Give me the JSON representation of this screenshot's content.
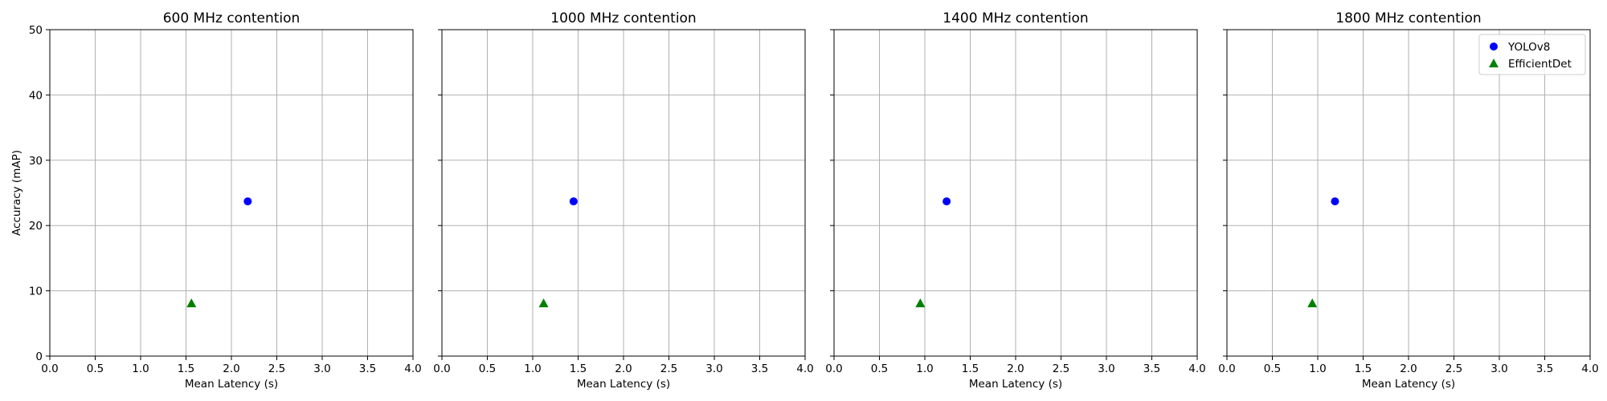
{
  "chart_data": [
    {
      "type": "scatter",
      "title": "600 MHz contention",
      "xlabel": "Mean Latency (s)",
      "ylabel": "Accuracy (mAP)",
      "xlim": [
        0,
        4
      ],
      "ylim": [
        0,
        50
      ],
      "x_ticks": [
        "0.0",
        "0.5",
        "1.0",
        "1.5",
        "2.0",
        "2.5",
        "3.0",
        "3.5",
        "4.0"
      ],
      "y_ticks": [
        "0",
        "10",
        "20",
        "30",
        "40",
        "50"
      ],
      "grid": true,
      "legend": false,
      "series": [
        {
          "name": "YOLOv8",
          "marker": "circle",
          "color": "#0000ff",
          "points": [
            {
              "x": 2.18,
              "y": 23.7
            }
          ]
        },
        {
          "name": "EfficientDet",
          "marker": "triangle",
          "color": "#008000",
          "points": [
            {
              "x": 1.56,
              "y": 8.1
            }
          ]
        }
      ]
    },
    {
      "type": "scatter",
      "title": "1000 MHz contention",
      "xlabel": "Mean Latency (s)",
      "ylabel": "",
      "xlim": [
        0,
        4
      ],
      "ylim": [
        0,
        50
      ],
      "x_ticks": [
        "0.0",
        "0.5",
        "1.0",
        "1.5",
        "2.0",
        "2.5",
        "3.0",
        "3.5",
        "4.0"
      ],
      "y_ticks": [],
      "grid": true,
      "legend": false,
      "series": [
        {
          "name": "YOLOv8",
          "marker": "circle",
          "color": "#0000ff",
          "points": [
            {
              "x": 1.45,
              "y": 23.7
            }
          ]
        },
        {
          "name": "EfficientDet",
          "marker": "triangle",
          "color": "#008000",
          "points": [
            {
              "x": 1.12,
              "y": 8.1
            }
          ]
        }
      ]
    },
    {
      "type": "scatter",
      "title": "1400 MHz contention",
      "xlabel": "Mean Latency (s)",
      "ylabel": "",
      "xlim": [
        0,
        4
      ],
      "ylim": [
        0,
        50
      ],
      "x_ticks": [
        "0.0",
        "0.5",
        "1.0",
        "1.5",
        "2.0",
        "2.5",
        "3.0",
        "3.5",
        "4.0"
      ],
      "y_ticks": [],
      "grid": true,
      "legend": false,
      "series": [
        {
          "name": "YOLOv8",
          "marker": "circle",
          "color": "#0000ff",
          "points": [
            {
              "x": 1.24,
              "y": 23.7
            }
          ]
        },
        {
          "name": "EfficientDet",
          "marker": "triangle",
          "color": "#008000",
          "points": [
            {
              "x": 0.95,
              "y": 8.1
            }
          ]
        }
      ]
    },
    {
      "type": "scatter",
      "title": "1800 MHz contention",
      "xlabel": "Mean Latency (s)",
      "ylabel": "",
      "xlim": [
        0,
        4
      ],
      "ylim": [
        0,
        50
      ],
      "x_ticks": [
        "0.0",
        "0.5",
        "1.0",
        "1.5",
        "2.0",
        "2.5",
        "3.0",
        "3.5",
        "4.0"
      ],
      "y_ticks": [],
      "grid": true,
      "legend": true,
      "legend_position": "top-right",
      "series": [
        {
          "name": "YOLOv8",
          "marker": "circle",
          "color": "#0000ff",
          "points": [
            {
              "x": 1.19,
              "y": 23.7
            }
          ]
        },
        {
          "name": "EfficientDet",
          "marker": "triangle",
          "color": "#008000",
          "points": [
            {
              "x": 0.94,
              "y": 8.1
            }
          ]
        }
      ]
    }
  ]
}
